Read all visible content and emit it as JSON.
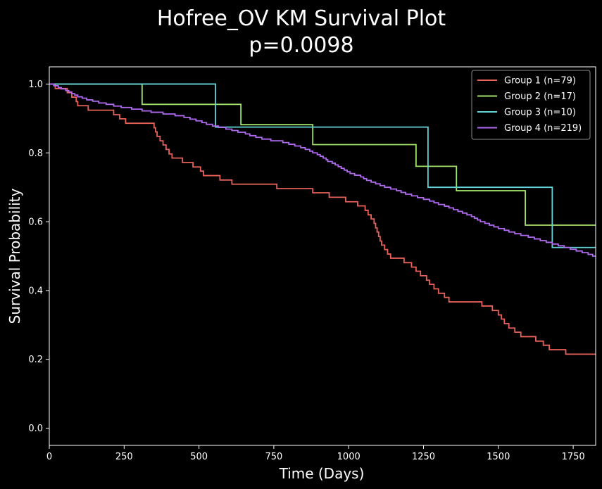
{
  "chart_data": {
    "type": "line",
    "title_lines": [
      "Hofree_OV KM Survival Plot",
      "p=0.0098"
    ],
    "xlabel": "Time (Days)",
    "ylabel": "Survival Probability",
    "xlim": [
      0,
      1825
    ],
    "ylim": [
      -0.05,
      1.05
    ],
    "xticks": [
      0,
      250,
      500,
      750,
      1000,
      1250,
      1500,
      1750
    ],
    "yticks": [
      0.0,
      0.2,
      0.4,
      0.6,
      0.8,
      1.0
    ],
    "xtick_labels": [
      "0",
      "250",
      "500",
      "750",
      "1000",
      "1250",
      "1500",
      "1750"
    ],
    "ytick_labels": [
      "0.0",
      "0.2",
      "0.4",
      "0.6",
      "0.8",
      "1.0"
    ],
    "grid": false,
    "legend_position": "top-right",
    "series": [
      {
        "name": "Group 1 (n=79)",
        "color": "#e8625a",
        "steps": [
          [
            0,
            1.0
          ],
          [
            20,
            0.987
          ],
          [
            60,
            0.975
          ],
          [
            75,
            0.962
          ],
          [
            90,
            0.949
          ],
          [
            95,
            0.937
          ],
          [
            130,
            0.924
          ],
          [
            215,
            0.911
          ],
          [
            235,
            0.899
          ],
          [
            255,
            0.886
          ],
          [
            350,
            0.873
          ],
          [
            355,
            0.861
          ],
          [
            360,
            0.848
          ],
          [
            370,
            0.835
          ],
          [
            380,
            0.823
          ],
          [
            390,
            0.81
          ],
          [
            400,
            0.797
          ],
          [
            410,
            0.785
          ],
          [
            445,
            0.772
          ],
          [
            480,
            0.759
          ],
          [
            505,
            0.747
          ],
          [
            515,
            0.734
          ],
          [
            570,
            0.721
          ],
          [
            610,
            0.709
          ],
          [
            760,
            0.696
          ],
          [
            880,
            0.684
          ],
          [
            935,
            0.671
          ],
          [
            990,
            0.658
          ],
          [
            1030,
            0.646
          ],
          [
            1055,
            0.633
          ],
          [
            1065,
            0.62
          ],
          [
            1075,
            0.608
          ],
          [
            1085,
            0.595
          ],
          [
            1090,
            0.582
          ],
          [
            1095,
            0.57
          ],
          [
            1100,
            0.557
          ],
          [
            1105,
            0.544
          ],
          [
            1110,
            0.532
          ],
          [
            1120,
            0.519
          ],
          [
            1130,
            0.506
          ],
          [
            1140,
            0.494
          ],
          [
            1185,
            0.481
          ],
          [
            1210,
            0.468
          ],
          [
            1225,
            0.456
          ],
          [
            1240,
            0.443
          ],
          [
            1260,
            0.43
          ],
          [
            1270,
            0.418
          ],
          [
            1285,
            0.405
          ],
          [
            1300,
            0.392
          ],
          [
            1320,
            0.38
          ],
          [
            1335,
            0.367
          ],
          [
            1445,
            0.355
          ],
          [
            1480,
            0.342
          ],
          [
            1500,
            0.329
          ],
          [
            1510,
            0.317
          ],
          [
            1520,
            0.304
          ],
          [
            1535,
            0.291
          ],
          [
            1555,
            0.279
          ],
          [
            1575,
            0.266
          ],
          [
            1625,
            0.253
          ],
          [
            1650,
            0.241
          ],
          [
            1670,
            0.228
          ],
          [
            1725,
            0.215
          ],
          [
            1825,
            0.215
          ]
        ]
      },
      {
        "name": "Group 2 (n=17)",
        "color": "#a3e36a",
        "steps": [
          [
            0,
            1.0
          ],
          [
            310,
            0.941
          ],
          [
            640,
            0.882
          ],
          [
            880,
            0.824
          ],
          [
            1225,
            0.761
          ],
          [
            1360,
            0.69
          ],
          [
            1590,
            0.59
          ],
          [
            1825,
            0.59
          ]
        ]
      },
      {
        "name": "Group 3 (n=10)",
        "color": "#63d5d8",
        "steps": [
          [
            0,
            1.0
          ],
          [
            555,
            0.875
          ],
          [
            1265,
            0.7
          ],
          [
            1680,
            0.525
          ],
          [
            1825,
            0.525
          ]
        ]
      },
      {
        "name": "Group 4 (n=219)",
        "color": "#b06af0",
        "steps": [
          [
            0,
            1.0
          ],
          [
            15,
            0.995
          ],
          [
            30,
            0.99
          ],
          [
            40,
            0.986
          ],
          [
            55,
            0.981
          ],
          [
            65,
            0.977
          ],
          [
            75,
            0.972
          ],
          [
            85,
            0.968
          ],
          [
            95,
            0.963
          ],
          [
            110,
            0.959
          ],
          [
            125,
            0.954
          ],
          [
            145,
            0.95
          ],
          [
            165,
            0.945
          ],
          [
            190,
            0.941
          ],
          [
            215,
            0.936
          ],
          [
            240,
            0.932
          ],
          [
            275,
            0.927
          ],
          [
            310,
            0.922
          ],
          [
            340,
            0.918
          ],
          [
            380,
            0.913
          ],
          [
            420,
            0.908
          ],
          [
            450,
            0.903
          ],
          [
            470,
            0.898
          ],
          [
            490,
            0.893
          ],
          [
            510,
            0.888
          ],
          [
            525,
            0.883
          ],
          [
            545,
            0.878
          ],
          [
            565,
            0.874
          ],
          [
            590,
            0.869
          ],
          [
            610,
            0.865
          ],
          [
            630,
            0.86
          ],
          [
            655,
            0.855
          ],
          [
            670,
            0.85
          ],
          [
            690,
            0.845
          ],
          [
            710,
            0.84
          ],
          [
            740,
            0.835
          ],
          [
            780,
            0.83
          ],
          [
            800,
            0.825
          ],
          [
            820,
            0.82
          ],
          [
            840,
            0.815
          ],
          [
            855,
            0.81
          ],
          [
            870,
            0.805
          ],
          [
            880,
            0.8
          ],
          [
            895,
            0.795
          ],
          [
            905,
            0.79
          ],
          [
            915,
            0.785
          ],
          [
            925,
            0.78
          ],
          [
            930,
            0.775
          ],
          [
            945,
            0.77
          ],
          [
            955,
            0.765
          ],
          [
            965,
            0.76
          ],
          [
            975,
            0.755
          ],
          [
            985,
            0.75
          ],
          [
            995,
            0.745
          ],
          [
            1005,
            0.74
          ],
          [
            1020,
            0.735
          ],
          [
            1040,
            0.73
          ],
          [
            1050,
            0.725
          ],
          [
            1060,
            0.72
          ],
          [
            1075,
            0.715
          ],
          [
            1090,
            0.71
          ],
          [
            1105,
            0.705
          ],
          [
            1120,
            0.7
          ],
          [
            1140,
            0.695
          ],
          [
            1160,
            0.69
          ],
          [
            1175,
            0.685
          ],
          [
            1190,
            0.68
          ],
          [
            1210,
            0.675
          ],
          [
            1230,
            0.67
          ],
          [
            1250,
            0.665
          ],
          [
            1270,
            0.66
          ],
          [
            1285,
            0.655
          ],
          [
            1300,
            0.65
          ],
          [
            1320,
            0.645
          ],
          [
            1335,
            0.64
          ],
          [
            1350,
            0.635
          ],
          [
            1365,
            0.63
          ],
          [
            1380,
            0.625
          ],
          [
            1395,
            0.62
          ],
          [
            1410,
            0.615
          ],
          [
            1420,
            0.61
          ],
          [
            1430,
            0.605
          ],
          [
            1440,
            0.6
          ],
          [
            1455,
            0.595
          ],
          [
            1470,
            0.59
          ],
          [
            1485,
            0.585
          ],
          [
            1500,
            0.58
          ],
          [
            1520,
            0.575
          ],
          [
            1535,
            0.57
          ],
          [
            1555,
            0.565
          ],
          [
            1575,
            0.56
          ],
          [
            1600,
            0.555
          ],
          [
            1620,
            0.55
          ],
          [
            1640,
            0.545
          ],
          [
            1660,
            0.54
          ],
          [
            1680,
            0.535
          ],
          [
            1700,
            0.53
          ],
          [
            1720,
            0.525
          ],
          [
            1740,
            0.52
          ],
          [
            1760,
            0.515
          ],
          [
            1780,
            0.51
          ],
          [
            1800,
            0.505
          ],
          [
            1815,
            0.5
          ],
          [
            1825,
            0.5
          ]
        ]
      }
    ]
  }
}
